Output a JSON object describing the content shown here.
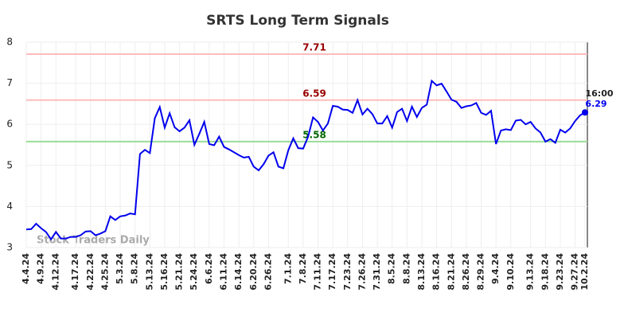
{
  "chart_data": {
    "type": "line",
    "title": "SRTS Long Term Signals",
    "watermark": "Stock Traders Daily",
    "time_label": "16:00",
    "categories": [
      "4.4.24",
      null,
      null,
      "4.9.24",
      null,
      null,
      "4.12.24",
      null,
      null,
      null,
      "4.17.24",
      null,
      null,
      "4.22.24",
      null,
      null,
      "4.25.24",
      null,
      null,
      "5.3.24",
      null,
      null,
      "5.8.24",
      null,
      null,
      "5.13.24",
      null,
      null,
      "5.16.24",
      null,
      null,
      "5.21.24",
      null,
      null,
      "5.24.24",
      null,
      null,
      "6.6.24",
      null,
      null,
      "6.11.24",
      null,
      null,
      "6.14.24",
      null,
      null,
      "6.20.24",
      null,
      null,
      "6.26.24",
      null,
      null,
      null,
      "7.1.24",
      null,
      null,
      "7.8.24",
      null,
      null,
      "7.11.24",
      null,
      null,
      "7.17.24",
      null,
      null,
      "7.23.24",
      null,
      null,
      "7.26.24",
      null,
      null,
      "7.31.24",
      null,
      null,
      "8.5.24",
      null,
      null,
      "8.8.24",
      null,
      null,
      "8.13.24",
      null,
      null,
      "8.16.24",
      null,
      null,
      "8.21.24",
      null,
      null,
      "8.26.24",
      null,
      null,
      "8.29.24",
      null,
      null,
      "9.4.24",
      null,
      null,
      "9.10.24",
      null,
      null,
      null,
      "9.13.24",
      null,
      null,
      "9.18.24",
      null,
      null,
      "9.23.24",
      null,
      null,
      "9.27.24",
      null,
      "10.2.24"
    ],
    "series": [
      {
        "color": "#0000ee",
        "values": [
          3.44,
          3.45,
          3.58,
          3.47,
          3.38,
          3.2,
          3.38,
          3.22,
          3.22,
          3.26,
          3.26,
          3.3,
          3.39,
          3.4,
          3.3,
          3.34,
          3.4,
          3.76,
          3.67,
          3.76,
          3.78,
          3.83,
          3.81,
          5.28,
          5.38,
          5.3,
          6.15,
          6.42,
          5.92,
          6.27,
          5.93,
          5.83,
          5.92,
          6.1,
          5.5,
          5.77,
          6.06,
          5.52,
          5.49,
          5.7,
          5.45,
          5.39,
          5.32,
          5.25,
          5.19,
          5.21,
          4.97,
          4.88,
          5.03,
          5.24,
          5.32,
          4.97,
          4.93,
          5.37,
          5.66,
          5.42,
          5.41,
          5.7,
          6.17,
          6.06,
          5.85,
          6.02,
          6.45,
          6.43,
          6.36,
          6.35,
          6.28,
          6.59,
          6.24,
          6.38,
          6.25,
          6.02,
          6.02,
          6.2,
          5.92,
          6.3,
          6.38,
          6.08,
          6.43,
          6.18,
          6.4,
          6.48,
          7.06,
          6.95,
          6.99,
          6.8,
          6.6,
          6.55,
          6.4,
          6.44,
          6.46,
          6.52,
          6.28,
          6.23,
          6.33,
          5.52,
          5.85,
          5.88,
          5.86,
          6.09,
          6.11,
          6.0,
          6.06,
          5.9,
          5.8,
          5.58,
          5.64,
          5.55,
          5.87,
          5.8,
          5.9,
          6.08,
          6.22,
          6.29
        ]
      }
    ],
    "hlines": [
      {
        "value": 7.71,
        "color": "#ffbbbb",
        "label_color": "#990000"
      },
      {
        "value": 6.59,
        "color": "#ffbbbb",
        "label_color": "#990000"
      },
      {
        "value": 5.58,
        "color": "#99dd99",
        "label_color": "#006600"
      }
    ],
    "ylim": [
      3,
      8
    ],
    "yticks": [
      3,
      4,
      5,
      6,
      7,
      8
    ],
    "grid": true
  }
}
